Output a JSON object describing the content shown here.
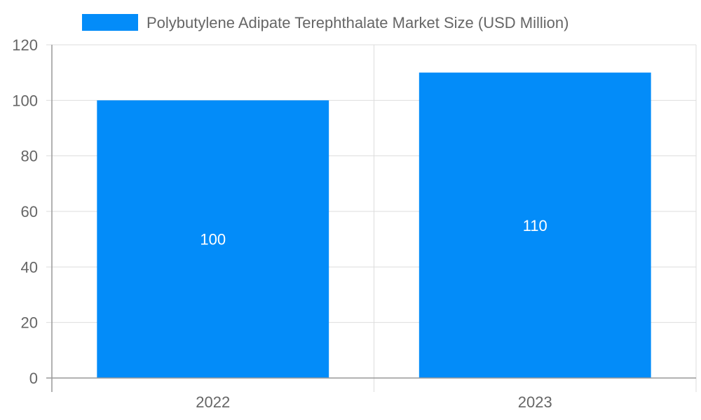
{
  "chart_data": {
    "type": "bar",
    "categories": [
      "2022",
      "2023"
    ],
    "series": [
      {
        "name": "Polybutylene Adipate Terephthalate Market Size (USD Million)",
        "values": [
          100,
          110
        ],
        "color": "#038cf9"
      }
    ],
    "ylim": [
      0,
      120
    ],
    "yticks": [
      0,
      20,
      40,
      60,
      80,
      100,
      120
    ],
    "grid": true,
    "legend_position": "top-center",
    "data_labels": [
      "100",
      "110"
    ],
    "data_label_color": "#ffffff"
  },
  "colors": {
    "grid": "#dddddd",
    "axis": "#999999",
    "tick_text": "#666666",
    "legend_text": "#666666"
  }
}
